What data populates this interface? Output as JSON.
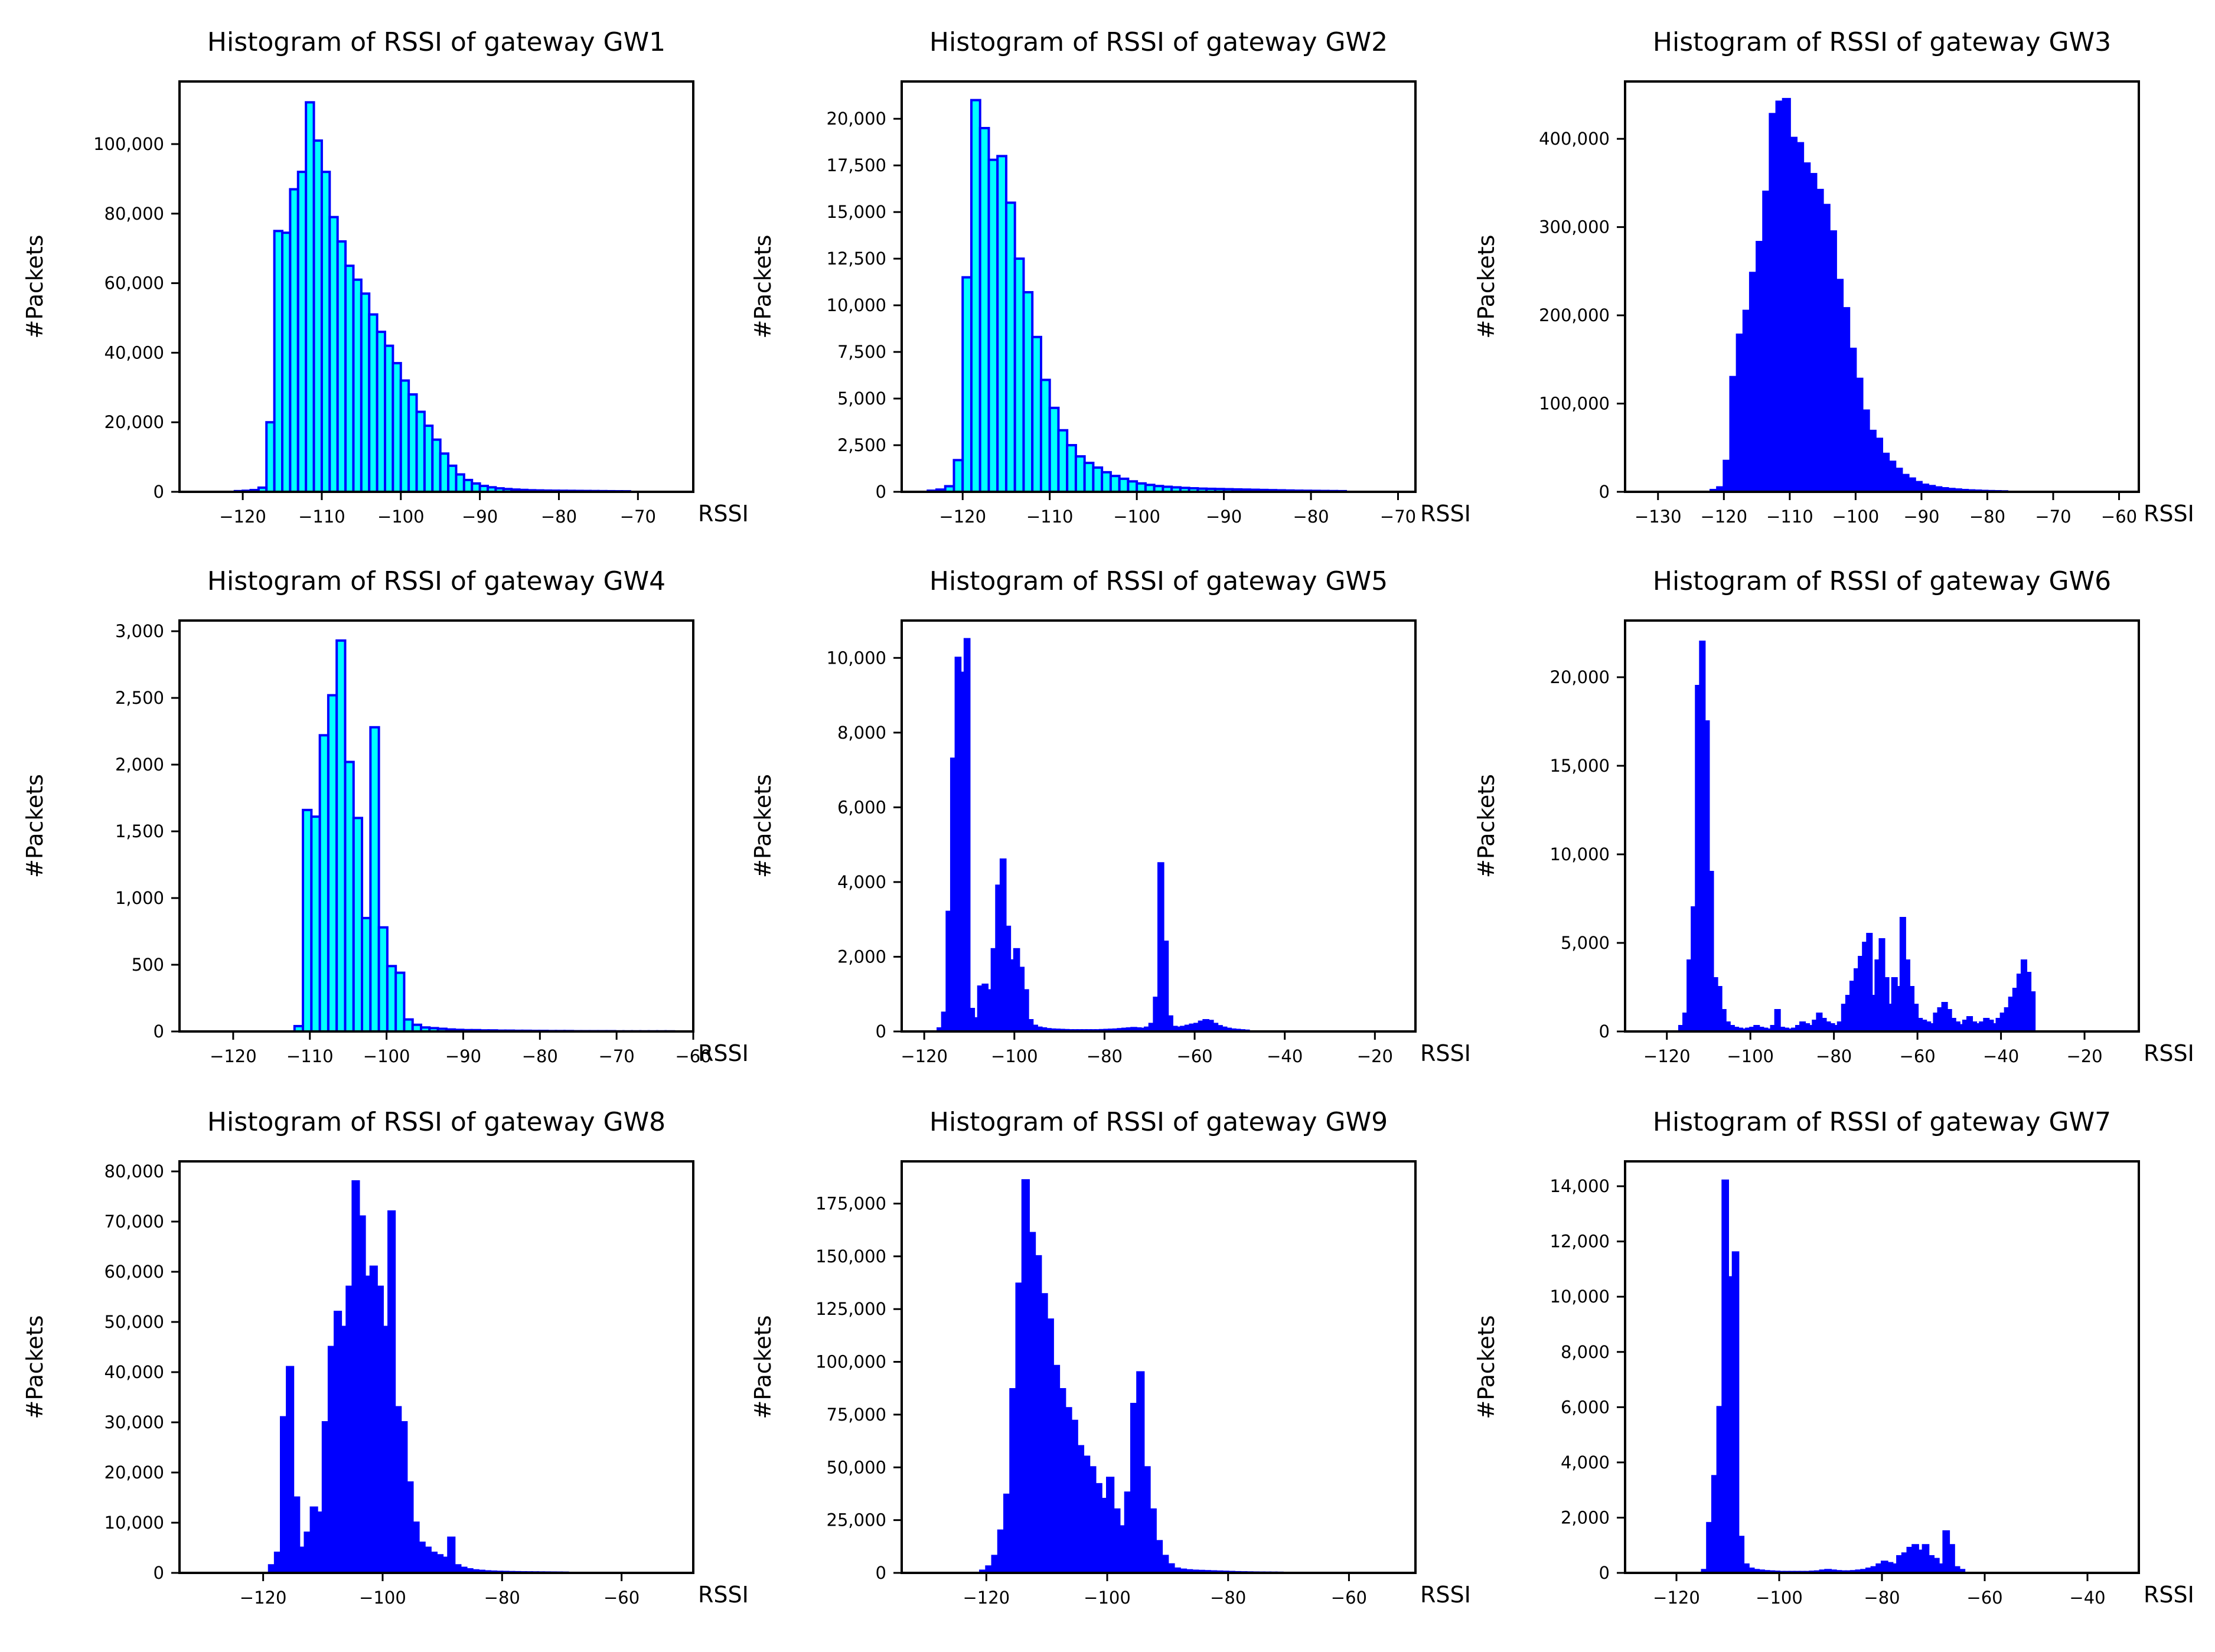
{
  "figure": {
    "ylabel": "#Packets",
    "xlabel": "RSSI"
  },
  "colors": {
    "bar_fill_light": "#00ffff",
    "bar_fill_dark": "#0000ff",
    "bar_edge": "#0000ff",
    "axis": "#000000"
  },
  "chart_data": [
    {
      "type": "bar",
      "title": "Histogram of RSSI of gateway GW1",
      "xlabel": "RSSI",
      "ylabel": "#Packets",
      "fill": "light",
      "xlim": [
        -128,
        -63
      ],
      "ylim": [
        0,
        118000
      ],
      "xticks": [
        -120,
        -110,
        -100,
        -90,
        -80,
        -70
      ],
      "yticks": [
        0,
        20000,
        40000,
        60000,
        80000,
        100000
      ],
      "bin_start": -121,
      "bin_width": 1,
      "values": [
        200,
        300,
        500,
        1200,
        20000,
        75000,
        74500,
        87000,
        92000,
        112000,
        101000,
        92000,
        79000,
        72000,
        65000,
        61000,
        57000,
        51000,
        46000,
        42000,
        37000,
        32000,
        28000,
        23000,
        19000,
        15000,
        11000,
        7500,
        5000,
        3400,
        2400,
        1700,
        1300,
        1000,
        800,
        650,
        550,
        450,
        400,
        350,
        320,
        300,
        280,
        260,
        240,
        220,
        200,
        180,
        160,
        150
      ]
    },
    {
      "type": "bar",
      "title": "Histogram of RSSI of gateway GW2",
      "xlabel": "RSSI",
      "ylabel": "#Packets",
      "fill": "light",
      "xlim": [
        -127,
        -68
      ],
      "ylim": [
        0,
        22000
      ],
      "xticks": [
        -120,
        -110,
        -100,
        -90,
        -80,
        -70
      ],
      "yticks": [
        0,
        2500,
        5000,
        7500,
        10000,
        12500,
        15000,
        17500,
        20000
      ],
      "bin_start": -124,
      "bin_width": 1,
      "values": [
        60,
        120,
        300,
        1700,
        11500,
        21000,
        19500,
        17800,
        18000,
        15500,
        12500,
        10700,
        8300,
        6000,
        4500,
        3300,
        2500,
        1900,
        1550,
        1300,
        1050,
        850,
        700,
        560,
        450,
        370,
        310,
        270,
        240,
        210,
        190,
        170,
        160,
        150,
        140,
        130,
        120,
        110,
        100,
        90,
        80,
        70,
        60,
        55,
        50,
        45,
        40,
        35
      ]
    },
    {
      "type": "bar",
      "title": "Histogram of RSSI of gateway GW3",
      "xlabel": "RSSI",
      "ylabel": "#Packets",
      "fill": "dark",
      "xlim": [
        -135,
        -57
      ],
      "ylim": [
        0,
        465000
      ],
      "xticks": [
        -130,
        -120,
        -110,
        -100,
        -90,
        -80,
        -70,
        -60
      ],
      "yticks": [
        0,
        100000,
        200000,
        300000,
        400000
      ],
      "bin_start": -122,
      "bin_width": 1,
      "values": [
        2000,
        5000,
        35000,
        130000,
        178000,
        205000,
        248000,
        283000,
        340000,
        428000,
        442000,
        445000,
        401000,
        395000,
        372000,
        360000,
        342000,
        325000,
        295000,
        240000,
        208000,
        162000,
        128000,
        92000,
        69000,
        60000,
        43000,
        34000,
        26000,
        19000,
        15000,
        11000,
        8000,
        6500,
        5000,
        4000,
        3200,
        2600,
        2000,
        1600,
        1300,
        1000,
        800,
        650,
        500
      ]
    },
    {
      "type": "bar",
      "title": "Histogram of RSSI of gateway GW4",
      "xlabel": "RSSI",
      "ylabel": "#Packets",
      "fill": "light",
      "xlim": [
        -127,
        -60
      ],
      "ylim": [
        0,
        3080
      ],
      "xticks": [
        -120,
        -110,
        -100,
        -90,
        -80,
        -70,
        -60
      ],
      "yticks": [
        0,
        500,
        1000,
        1500,
        2000,
        2500,
        3000
      ],
      "bin_start": -112,
      "bin_width": 1.1,
      "values": [
        40,
        1660,
        1610,
        2220,
        2520,
        2930,
        2020,
        1600,
        850,
        2280,
        780,
        490,
        440,
        90,
        50,
        30,
        25,
        20,
        15,
        12,
        10,
        10,
        8,
        8,
        6,
        6,
        5,
        5,
        4,
        4,
        3,
        3,
        3,
        2,
        2,
        2,
        2,
        2,
        1,
        1,
        1,
        1,
        1,
        1,
        1
      ]
    },
    {
      "type": "bar",
      "title": "Histogram of RSSI of gateway GW5",
      "xlabel": "RSSI",
      "ylabel": "#Packets",
      "fill": "dark",
      "xlim": [
        -125,
        -11
      ],
      "ylim": [
        0,
        11000
      ],
      "xticks": [
        -120,
        -100,
        -80,
        -60,
        -40,
        -20
      ],
      "yticks": [
        0,
        2000,
        4000,
        6000,
        8000,
        10000
      ],
      "bin_start": -117,
      "bin_width": 1,
      "values": [
        80,
        500,
        3200,
        7300,
        10000,
        9600,
        10500,
        600,
        350,
        1200,
        1250,
        1100,
        2200,
        3900,
        4600,
        2800,
        1900,
        2200,
        1700,
        1100,
        300,
        150,
        100,
        80,
        60,
        50,
        45,
        40,
        35,
        30,
        30,
        30,
        30,
        30,
        30,
        30,
        35,
        40,
        45,
        50,
        60,
        70,
        80,
        90,
        80,
        70,
        100,
        200,
        900,
        4500,
        2400,
        400,
        120,
        100,
        120,
        150,
        180,
        200,
        260,
        300,
        280,
        200,
        140,
        100,
        70,
        50,
        40,
        30,
        20
      ]
    },
    {
      "type": "bar",
      "title": "Histogram of RSSI of gateway GW6",
      "xlabel": "RSSI",
      "ylabel": "#Packets",
      "fill": "dark",
      "xlim": [
        -130,
        -7
      ],
      "ylim": [
        0,
        23200
      ],
      "xticks": [
        -120,
        -100,
        -80,
        -60,
        -40,
        -20
      ],
      "yticks": [
        0,
        5000,
        10000,
        15000,
        20000
      ],
      "bin_start": -117,
      "bin_width": 1,
      "values": [
        300,
        1000,
        4000,
        7000,
        19500,
        22000,
        17500,
        9000,
        3000,
        2500,
        1200,
        500,
        300,
        200,
        150,
        100,
        150,
        200,
        300,
        200,
        150,
        100,
        300,
        1200,
        200,
        150,
        100,
        150,
        300,
        500,
        400,
        300,
        600,
        1000,
        700,
        500,
        400,
        300,
        500,
        1500,
        2000,
        2800,
        3500,
        4200,
        5000,
        5500,
        2000,
        4000,
        5200,
        3000,
        1500,
        3000,
        2500,
        6400,
        4000,
        2500,
        1500,
        700,
        600,
        500,
        400,
        1000,
        1300,
        1600,
        1200,
        700,
        500,
        350,
        600,
        800,
        500,
        400,
        500,
        700,
        600,
        400,
        700,
        1000,
        1300,
        1900,
        2400,
        3200,
        4000,
        3300,
        2200
      ]
    },
    {
      "type": "bar",
      "title": "Histogram of RSSI of gateway GW8",
      "xlabel": "RSSI",
      "ylabel": "#Packets",
      "fill": "dark",
      "xlim": [
        -134,
        -48
      ],
      "ylim": [
        0,
        82000
      ],
      "xticks": [
        -120,
        -100,
        -80,
        -60
      ],
      "yticks": [
        0,
        10000,
        20000,
        30000,
        40000,
        50000,
        60000,
        70000,
        80000
      ],
      "bin_start": -119,
      "bin_width": 1,
      "values": [
        1500,
        4000,
        31000,
        41000,
        15000,
        5000,
        8000,
        13000,
        12000,
        30000,
        45000,
        52000,
        49000,
        57000,
        78000,
        71000,
        59000,
        61000,
        57000,
        49000,
        72000,
        33000,
        30000,
        18000,
        10000,
        6000,
        5000,
        4000,
        3500,
        3000,
        7000,
        1500,
        1000,
        700,
        500,
        400,
        300,
        250,
        200,
        180,
        150,
        130,
        110,
        100,
        90,
        80,
        70,
        60,
        50,
        40
      ]
    },
    {
      "type": "bar",
      "title": "Histogram of RSSI of gateway GW9",
      "xlabel": "RSSI",
      "ylabel": "#Packets",
      "fill": "dark",
      "xlim": [
        -134,
        -49
      ],
      "ylim": [
        0,
        195000
      ],
      "xticks": [
        -120,
        -100,
        -80,
        -60
      ],
      "yticks": [
        0,
        25000,
        50000,
        75000,
        100000,
        125000,
        150000,
        175000
      ],
      "bin_start": -121,
      "bin_width": 1,
      "values": [
        1000,
        3000,
        8000,
        20000,
        37000,
        87000,
        137000,
        186000,
        161000,
        150000,
        132000,
        120000,
        98000,
        87000,
        78000,
        72000,
        60000,
        55000,
        50000,
        42000,
        35000,
        45000,
        30000,
        22000,
        38000,
        80000,
        95000,
        50000,
        30000,
        15000,
        8000,
        4000,
        2000,
        1500,
        1200,
        1000,
        900,
        800,
        700,
        600,
        500,
        400,
        300,
        250,
        200,
        150,
        120,
        100,
        80,
        60
      ]
    },
    {
      "type": "bar",
      "title": "Histogram of RSSI of gateway GW7",
      "xlabel": "RSSI",
      "ylabel": "#Packets",
      "fill": "dark",
      "xlim": [
        -130,
        -30
      ],
      "ylim": [
        0,
        14900
      ],
      "xticks": [
        -120,
        -100,
        -80,
        -60,
        -40
      ],
      "yticks": [
        0,
        2000,
        4000,
        6000,
        8000,
        10000,
        12000,
        14000
      ],
      "bin_start": -115,
      "bin_width": 1,
      "values": [
        100,
        1800,
        3500,
        6000,
        14200,
        10700,
        11600,
        1300,
        300,
        150,
        100,
        80,
        60,
        50,
        40,
        30,
        30,
        30,
        30,
        30,
        30,
        40,
        50,
        80,
        100,
        80,
        60,
        50,
        50,
        60,
        80,
        100,
        150,
        200,
        300,
        400,
        350,
        300,
        600,
        700,
        900,
        1000,
        800,
        1000,
        600,
        500,
        300,
        1500,
        1000,
        200,
        100
      ]
    }
  ]
}
